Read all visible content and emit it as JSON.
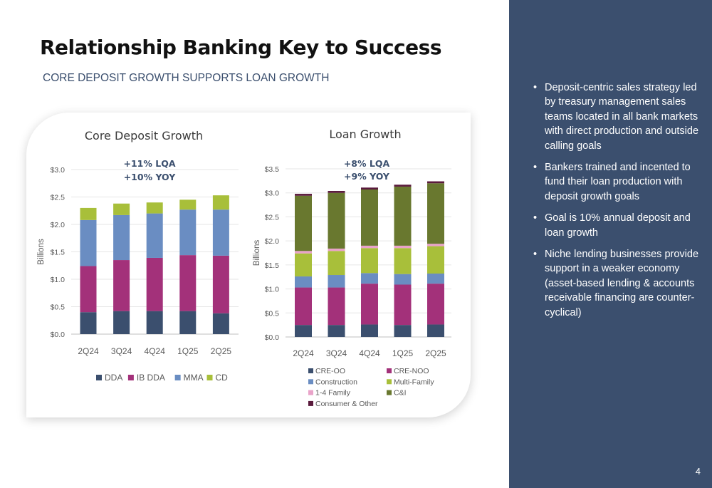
{
  "slide": {
    "title": "Relationship Banking Key to Success",
    "subtitle": "CORE DEPOSIT GROWTH SUPPORTS LOAN GROWTH",
    "page_number": "4"
  },
  "sidebar": {
    "bullets": [
      "Deposit-centric sales strategy led by treasury management sales teams located in all bank markets with direct production and outside calling goals",
      "Bankers trained and incented to fund their loan production with deposit growth goals",
      "Goal is 10% annual deposit and loan growth",
      "Niche lending businesses provide support in a weaker economy (asset-based lending & accounts receivable financing are counter-cyclical)"
    ]
  },
  "chart_data": [
    {
      "type": "bar",
      "stacked": true,
      "title": "Core Deposit Growth",
      "annotation": [
        "+11% LQA",
        "+10%  YOY"
      ],
      "ylabel": "Billions",
      "xlabel": "",
      "ylim": [
        0,
        3.0
      ],
      "yticks": [
        "$0.0",
        "$0.5",
        "$1.0",
        "$1.5",
        "$2.0",
        "$2.5",
        "$3.0"
      ],
      "categories": [
        "2Q24",
        "3Q24",
        "4Q24",
        "1Q25",
        "2Q25"
      ],
      "legend_position": "bottom",
      "series": [
        {
          "name": "DDA",
          "color": "#3b4f6e",
          "values": [
            0.4,
            0.42,
            0.42,
            0.42,
            0.38
          ]
        },
        {
          "name": "IB DDA",
          "color": "#a3317a",
          "values": [
            0.84,
            0.93,
            0.97,
            1.02,
            1.05
          ]
        },
        {
          "name": "MMA",
          "color": "#6a8dc2",
          "values": [
            0.84,
            0.82,
            0.81,
            0.83,
            0.84
          ]
        },
        {
          "name": "CD",
          "color": "#a8bf3a",
          "values": [
            0.22,
            0.21,
            0.2,
            0.18,
            0.26
          ]
        }
      ]
    },
    {
      "type": "bar",
      "stacked": true,
      "title": "Loan Growth",
      "annotation": [
        "+8% LQA",
        "+9% YOY"
      ],
      "ylabel": "Billions",
      "xlabel": "",
      "ylim": [
        0,
        3.5
      ],
      "yticks": [
        "$0.0",
        "$0.5",
        "$1.0",
        "$1.5",
        "$2.0",
        "$2.5",
        "$3.0",
        "$3.5"
      ],
      "categories": [
        "2Q24",
        "3Q24",
        "4Q24",
        "1Q25",
        "2Q25"
      ],
      "legend_position": "bottom",
      "series": [
        {
          "name": "CRE-OO",
          "color": "#3b4f6e",
          "values": [
            0.25,
            0.25,
            0.26,
            0.25,
            0.26
          ]
        },
        {
          "name": "CRE-NOO",
          "color": "#a3317a",
          "values": [
            0.78,
            0.78,
            0.85,
            0.84,
            0.85
          ]
        },
        {
          "name": "Construction",
          "color": "#6a8dc2",
          "values": [
            0.23,
            0.26,
            0.22,
            0.22,
            0.21
          ]
        },
        {
          "name": "Multi-Family",
          "color": "#a8bf3a",
          "values": [
            0.48,
            0.5,
            0.52,
            0.54,
            0.57
          ]
        },
        {
          "name": "1-4 Family",
          "color": "#e9a3c9",
          "values": [
            0.05,
            0.05,
            0.05,
            0.05,
            0.05
          ]
        },
        {
          "name": "C&I",
          "color": "#69782f",
          "values": [
            1.15,
            1.16,
            1.17,
            1.23,
            1.26
          ]
        },
        {
          "name": "Consumer & Other",
          "color": "#5a1a3c",
          "values": [
            0.04,
            0.04,
            0.04,
            0.04,
            0.04
          ]
        }
      ]
    }
  ]
}
